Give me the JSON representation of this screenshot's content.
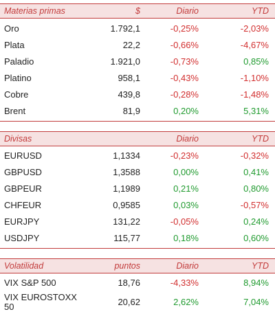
{
  "commodities": {
    "header": {
      "name": "Materias primas",
      "unit": "$",
      "daily": "Diario",
      "ytd": "YTD"
    },
    "rows": [
      {
        "name": "Oro",
        "value": "1.792,1",
        "daily": "-0,25%",
        "ytd": "-2,03%"
      },
      {
        "name": "Plata",
        "value": "22,2",
        "daily": "-0,66%",
        "ytd": "-4,67%"
      },
      {
        "name": "Paladio",
        "value": "1.921,0",
        "daily": "-0,73%",
        "ytd": "0,85%"
      },
      {
        "name": "Platino",
        "value": "958,1",
        "daily": "-0,43%",
        "ytd": "-1,10%"
      },
      {
        "name": "Cobre",
        "value": "439,8",
        "daily": "-0,28%",
        "ytd": "-1,48%"
      },
      {
        "name": "Brent",
        "value": "81,9",
        "daily": "0,20%",
        "ytd": "5,31%"
      }
    ]
  },
  "currencies": {
    "header": {
      "name": "Divisas",
      "unit": "",
      "daily": "Diario",
      "ytd": "YTD"
    },
    "rows": [
      {
        "name": "EURUSD",
        "value": "1,1334",
        "daily": "-0,23%",
        "ytd": "-0,32%"
      },
      {
        "name": "GBPUSD",
        "value": "1,3588",
        "daily": "0,00%",
        "ytd": "0,41%"
      },
      {
        "name": "GBPEUR",
        "value": "1,1989",
        "daily": "0,21%",
        "ytd": "0,80%"
      },
      {
        "name": "CHFEUR",
        "value": "0,9585",
        "daily": "0,03%",
        "ytd": "-0,57%"
      },
      {
        "name": "EURJPY",
        "value": "131,22",
        "daily": "-0,05%",
        "ytd": "0,24%"
      },
      {
        "name": "USDJPY",
        "value": "115,77",
        "daily": "0,18%",
        "ytd": "0,60%"
      }
    ]
  },
  "volatility": {
    "header": {
      "name": "Volatilidad",
      "unit": "puntos",
      "daily": "Diario",
      "ytd": "YTD"
    },
    "rows": [
      {
        "name": "VIX S&P 500",
        "value": "18,76",
        "daily": "-4,33%",
        "ytd": "8,94%"
      },
      {
        "name": "VIX EUROSTOXX 50",
        "value": "20,62",
        "daily": "2,62%",
        "ytd": "7,04%"
      }
    ]
  },
  "colors": {
    "positive": "#1f9a2e",
    "negative": "#d12d2d",
    "accent": "#c23b3b",
    "header_bg": "#f6e2e2"
  }
}
